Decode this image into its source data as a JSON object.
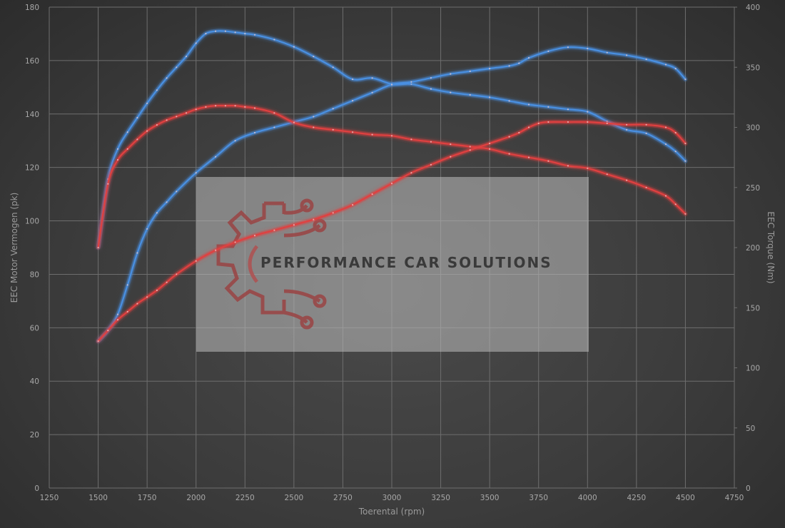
{
  "chart_data": {
    "type": "line",
    "xlabel": "Toerental (rpm)",
    "ylabel_left": "EEC Motor Vermogen (pk)",
    "ylabel_right": "EEC Torque (Nm)",
    "xlim": [
      1250,
      4750
    ],
    "ylim_left": [
      0,
      180
    ],
    "ylim_right": [
      0,
      400
    ],
    "x_ticks": [
      1250,
      1500,
      1750,
      2000,
      2250,
      2500,
      2750,
      3000,
      3250,
      3500,
      3750,
      4000,
      4250,
      4500,
      4750
    ],
    "y_ticks_left": [
      0,
      20,
      40,
      60,
      80,
      100,
      120,
      140,
      160,
      180
    ],
    "y_ticks_right": [
      0,
      50,
      100,
      150,
      200,
      250,
      300,
      350,
      400
    ],
    "grid": true,
    "series": [
      {
        "axis": "right",
        "color": "#4a90e2",
        "x": [
          1500,
          1550,
          1600,
          1650,
          1700,
          1750,
          1800,
          1850,
          1900,
          1950,
          2000,
          2050,
          2100,
          2150,
          2200,
          2250,
          2300,
          2400,
          2500,
          2600,
          2700,
          2800,
          2900,
          3000,
          3100,
          3200,
          3300,
          3400,
          3500,
          3600,
          3700,
          3800,
          3900,
          4000,
          4100,
          4200,
          4300,
          4400,
          4450,
          4500
        ],
        "y": [
          200,
          257,
          282,
          296,
          308,
          320,
          331,
          341,
          350,
          359,
          370,
          378,
          380,
          380,
          379,
          378,
          377,
          373,
          367,
          359,
          350,
          340,
          341,
          336,
          336,
          332,
          329,
          327,
          325,
          322,
          319,
          317,
          315,
          313,
          305,
          298,
          295,
          286,
          280,
          272
        ]
      },
      {
        "axis": "left",
        "color": "#4a90e2",
        "x": [
          1500,
          1550,
          1600,
          1650,
          1700,
          1750,
          1800,
          1850,
          1900,
          2000,
          2100,
          2200,
          2300,
          2400,
          2500,
          2600,
          2700,
          2800,
          2900,
          3000,
          3100,
          3200,
          3300,
          3400,
          3500,
          3600,
          3650,
          3700,
          3800,
          3900,
          4000,
          4100,
          4200,
          4300,
          4400,
          4450,
          4500
        ],
        "y": [
          55,
          59,
          65,
          76,
          88,
          97,
          103,
          107,
          111,
          118,
          124,
          130,
          133,
          135,
          137,
          139,
          142,
          145,
          148,
          151,
          152,
          153.5,
          155,
          156,
          157,
          158,
          159,
          161,
          163.5,
          165,
          164.5,
          163,
          162,
          160.5,
          158.5,
          157,
          153
        ]
      },
      {
        "axis": "right",
        "color": "#e04040",
        "x": [
          1500,
          1550,
          1600,
          1650,
          1700,
          1750,
          1800,
          1850,
          1900,
          1950,
          2000,
          2050,
          2100,
          2150,
          2200,
          2250,
          2300,
          2400,
          2500,
          2600,
          2700,
          2800,
          2900,
          3000,
          3100,
          3200,
          3300,
          3400,
          3500,
          3600,
          3700,
          3800,
          3900,
          4000,
          4100,
          4200,
          4300,
          4400,
          4450,
          4500
        ],
        "y": [
          200,
          253,
          273,
          282,
          290,
          297,
          302,
          306,
          309,
          312,
          315,
          317,
          318,
          318,
          318,
          317,
          316,
          312,
          304,
          300,
          298,
          296,
          294,
          293,
          290,
          288,
          286,
          284,
          282,
          278,
          275,
          272,
          268,
          266,
          261,
          256,
          250,
          243,
          236,
          228
        ]
      },
      {
        "axis": "left",
        "color": "#e04040",
        "x": [
          1500,
          1550,
          1600,
          1650,
          1700,
          1750,
          1800,
          1850,
          1900,
          2000,
          2100,
          2200,
          2300,
          2400,
          2500,
          2600,
          2700,
          2800,
          2900,
          3000,
          3100,
          3200,
          3300,
          3400,
          3500,
          3600,
          3650,
          3700,
          3750,
          3800,
          3900,
          4000,
          4100,
          4200,
          4300,
          4400,
          4450,
          4500
        ],
        "y": [
          55,
          59,
          63,
          66,
          69,
          71.5,
          74,
          77,
          80,
          85,
          89,
          92,
          94.5,
          96.5,
          98.5,
          100.5,
          103,
          106,
          110,
          114,
          118,
          121,
          124,
          126.5,
          129,
          131.5,
          133,
          135,
          136.5,
          137,
          137,
          137,
          136.5,
          136,
          136,
          135,
          133,
          129
        ]
      }
    ],
    "watermark_text": "PERFORMANCE CAR SOLUTIONS"
  }
}
